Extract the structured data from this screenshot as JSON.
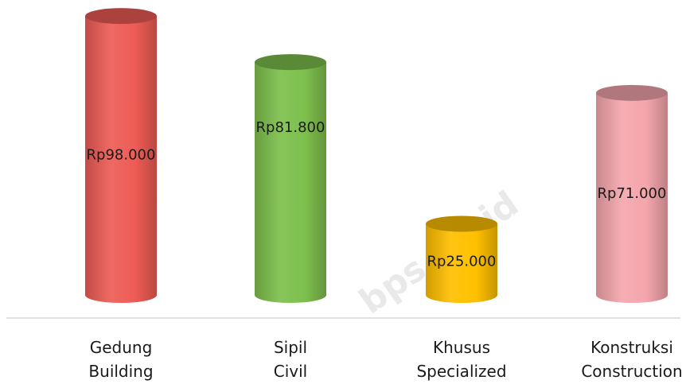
{
  "chart_data": {
    "type": "bar",
    "style": "3d-cylinder",
    "categories": [
      {
        "line1": "Gedung",
        "line2": "Building"
      },
      {
        "line1": "Sipil",
        "line2": "Civil"
      },
      {
        "line1": "Khusus",
        "line2": "Specialized"
      },
      {
        "line1": "Konstruksi",
        "line2": "Construction"
      }
    ],
    "values": [
      98000,
      81800,
      25000,
      71000
    ],
    "value_labels": [
      "Rp98.000",
      "Rp81.800",
      "Rp25.000",
      "Rp71.000"
    ],
    "colors": [
      "#ee5c55",
      "#7dc04d",
      "#ffc000",
      "#f4a6ac"
    ],
    "ylim": [
      0,
      100000
    ],
    "grid": false,
    "title": "",
    "xlabel": "",
    "ylabel": ""
  },
  "watermark": "bps.go.id"
}
